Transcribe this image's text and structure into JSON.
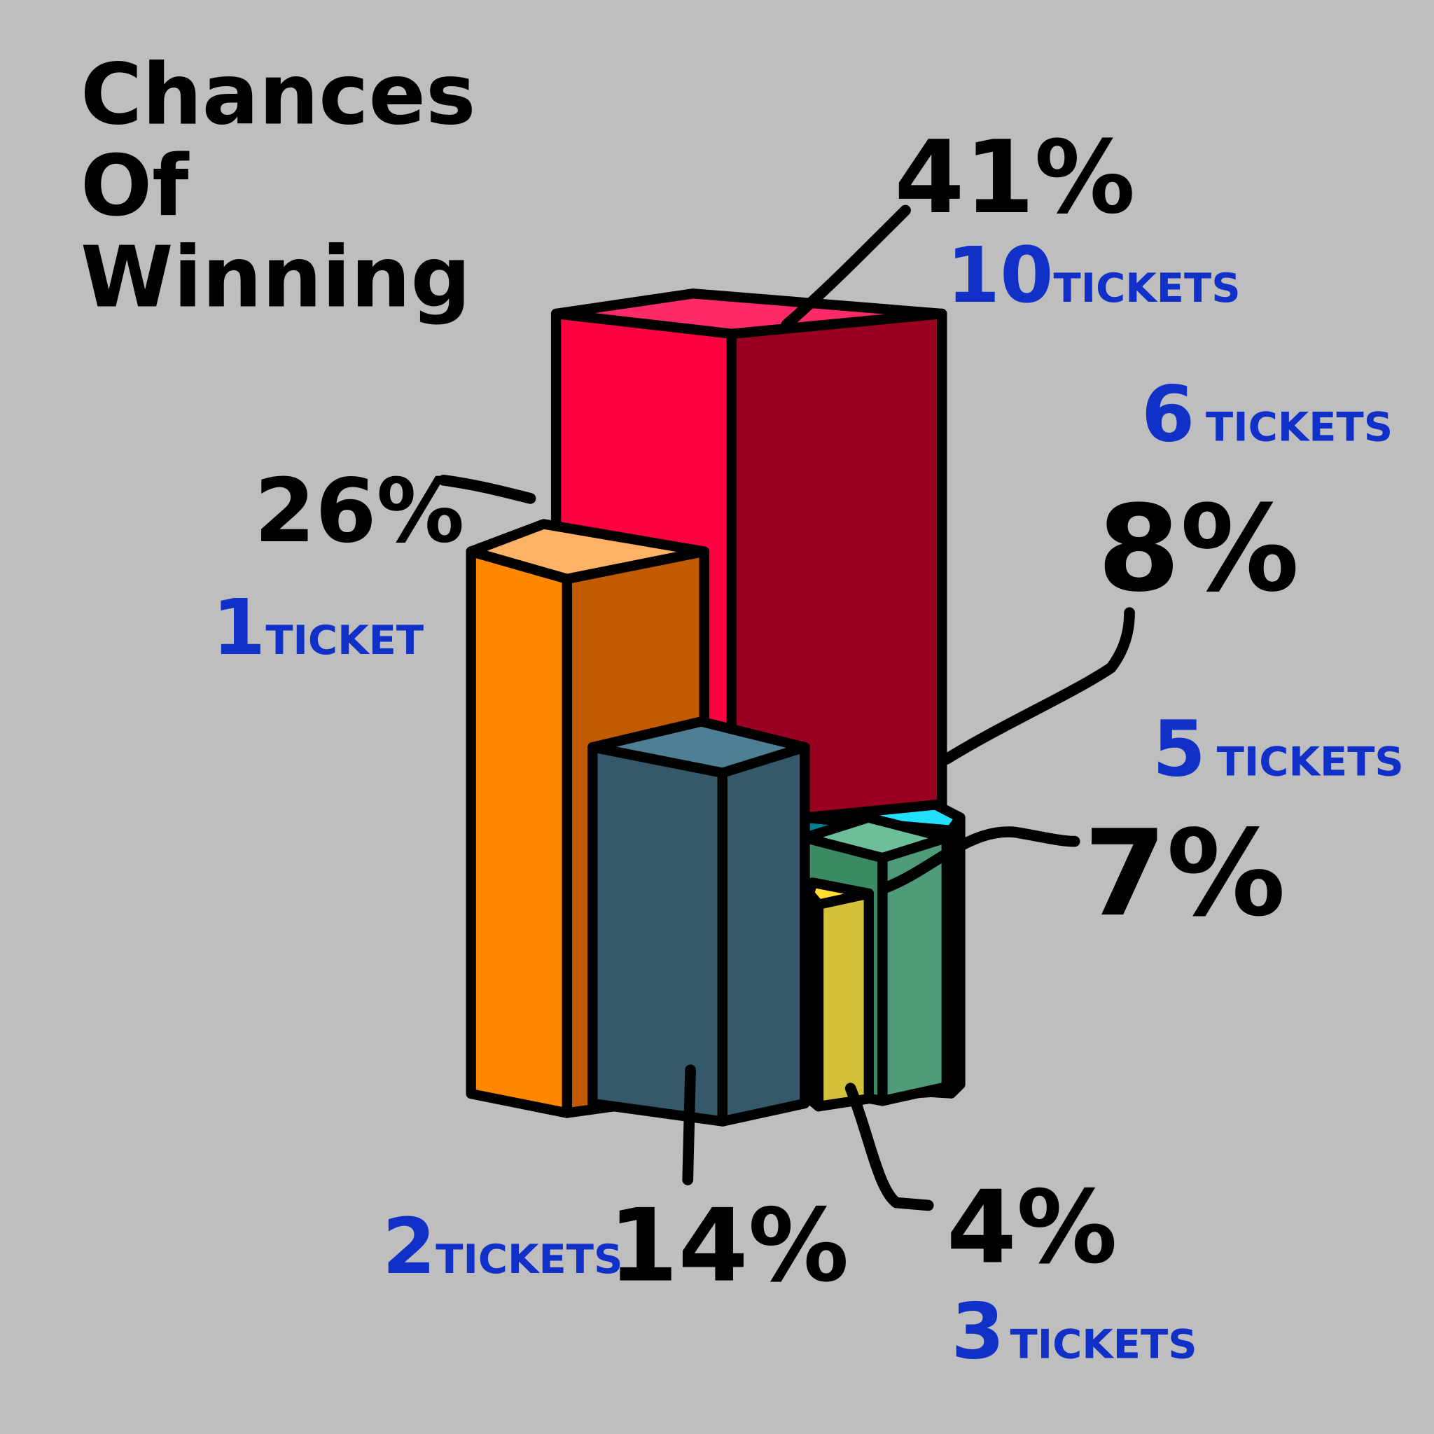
{
  "chart_data": {
    "type": "bar",
    "style": "hand-drawn 3D prisms",
    "title": "Chances Of Winning",
    "title_lines": [
      "Chances",
      "Of",
      "Winning"
    ],
    "unit": "%",
    "categories": [
      "10 tickets",
      "1 ticket",
      "2 tickets",
      "6 tickets",
      "5 tickets",
      "3 tickets"
    ],
    "values": [
      41,
      26,
      14,
      8,
      7,
      4
    ],
    "data_labels": [
      "41%",
      "26%",
      "14%",
      "8%",
      "7%",
      "4%"
    ],
    "category_labels": [
      {
        "count": "10",
        "word": "TICKETS"
      },
      {
        "count": "1",
        "word": "TICKET"
      },
      {
        "count": "2",
        "word": "TICKETS"
      },
      {
        "count": "6",
        "word": "TICKETS"
      },
      {
        "count": "5",
        "word": "TICKETS"
      },
      {
        "count": "3",
        "word": "TICKETS"
      }
    ],
    "colors": [
      {
        "top": "#ff2a6a",
        "left": "#ff0040",
        "right": "#9a0020"
      },
      {
        "top": "#ffb266",
        "left": "#ff8800",
        "right": "#c25a00"
      },
      {
        "top": "#4f7f95",
        "left": "#33596a",
        "right": "#33596a"
      },
      {
        "top": "#22e0ff",
        "left": "#007d90",
        "right": "#1fc8e0"
      },
      {
        "top": "#6cbf9a",
        "left": "#3a8a62",
        "right": "#4f9a78"
      },
      {
        "top": "#ffe030",
        "left": "#c8b030",
        "right": "#d4c03a"
      }
    ],
    "background": "#bebebe",
    "label_color": "#1030c8",
    "axes": "none",
    "grid": false,
    "legend": "none"
  }
}
